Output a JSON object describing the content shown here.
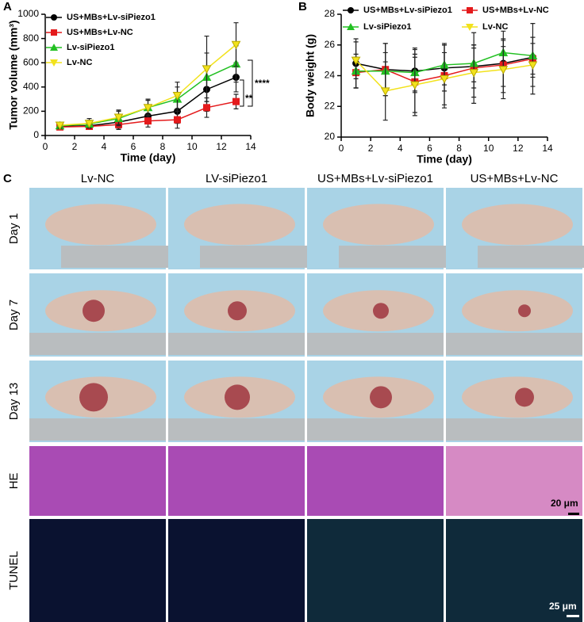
{
  "chart_data": [
    {
      "type": "line",
      "panel_label": "A",
      "x_label": "Time (day)",
      "y_label": "Tumor volume (mm³)",
      "x": [
        1,
        3,
        5,
        7,
        9,
        11,
        13
      ],
      "xlim": [
        0,
        14
      ],
      "xticks": [
        0,
        2,
        4,
        6,
        8,
        10,
        12,
        14
      ],
      "ylim": [
        0,
        1000
      ],
      "yticks": [
        0,
        200,
        400,
        600,
        800,
        1000
      ],
      "legend": "upper left",
      "legend_columns": 1,
      "series": [
        {
          "name": "US+MBs+Lv-siPiezo1",
          "color": "#000000",
          "marker": "circle",
          "values": [
            75,
            80,
            110,
            160,
            200,
            380,
            480
          ],
          "errors": [
            20,
            30,
            50,
            60,
            100,
            180,
            120
          ]
        },
        {
          "name": "US+MBs+Lv-NC",
          "color": "#e41a1c",
          "marker": "square",
          "values": [
            70,
            75,
            90,
            120,
            130,
            230,
            280
          ],
          "errors": [
            20,
            25,
            40,
            50,
            70,
            80,
            60
          ]
        },
        {
          "name": "Lv-siPiezo1",
          "color": "#22c022",
          "marker": "triangle",
          "values": [
            80,
            95,
            140,
            230,
            300,
            480,
            590
          ],
          "errors": [
            25,
            30,
            60,
            70,
            100,
            200,
            150
          ]
        },
        {
          "name": "Lv-NC",
          "color": "#f2e21c",
          "marker": "triangle-down",
          "values": [
            85,
            100,
            150,
            230,
            330,
            550,
            750
          ],
          "errors": [
            25,
            40,
            60,
            60,
            110,
            270,
            180
          ]
        }
      ],
      "annotations": [
        "****",
        "**"
      ]
    },
    {
      "type": "line",
      "panel_label": "B",
      "x_label": "Time (day)",
      "y_label": "Body weight (g)",
      "x": [
        1,
        3,
        5,
        7,
        9,
        11,
        13
      ],
      "xlim": [
        0,
        14
      ],
      "xticks": [
        0,
        2,
        4,
        6,
        8,
        10,
        12,
        14
      ],
      "ylim": [
        20,
        28
      ],
      "yticks": [
        20,
        22,
        24,
        26,
        28
      ],
      "legend": "top",
      "legend_columns": 2,
      "series": [
        {
          "name": "US+MBs+Lv-siPiezo1",
          "color": "#000000",
          "marker": "circle",
          "values": [
            24.8,
            24.4,
            24.3,
            24.5,
            24.6,
            24.8,
            25.2
          ],
          "errors": [
            1.6,
            1.7,
            1.4,
            1.5,
            1.4,
            1.5,
            1.3
          ]
        },
        {
          "name": "US+MBs+Lv-NC",
          "color": "#e41a1c",
          "marker": "square",
          "values": [
            24.2,
            24.4,
            23.6,
            24.0,
            24.5,
            24.7,
            25.1
          ],
          "errors": [
            1.0,
            1.7,
            2.2,
            2.1,
            2.3,
            2.2,
            2.3
          ]
        },
        {
          "name": "Lv-siPiezo1",
          "color": "#22c022",
          "marker": "triangle",
          "values": [
            24.3,
            24.3,
            24.2,
            24.7,
            24.8,
            25.5,
            25.3
          ],
          "errors": [
            1.1,
            1.2,
            1.2,
            1.3,
            1.2,
            0.9,
            1.2
          ]
        },
        {
          "name": "Lv-NC",
          "color": "#f2e21c",
          "marker": "triangle-down",
          "values": [
            25.0,
            23.0,
            23.4,
            23.8,
            24.2,
            24.4,
            24.7
          ],
          "errors": [
            1.2,
            1.9,
            1.8,
            1.7,
            1.6,
            1.5,
            1.4
          ]
        }
      ]
    }
  ],
  "photo_panel": {
    "panel_label": "C",
    "columns": [
      "Lv-NC",
      "LV-siPiezo1",
      "US+MBs+Lv-siPiezo1",
      "US+MBs+Lv-NC"
    ],
    "rows": [
      "Day 1",
      "Day 7",
      "Day 13",
      "HE",
      "TUNEL"
    ],
    "scale_bars": [
      "20 μm",
      "25 μm"
    ]
  }
}
